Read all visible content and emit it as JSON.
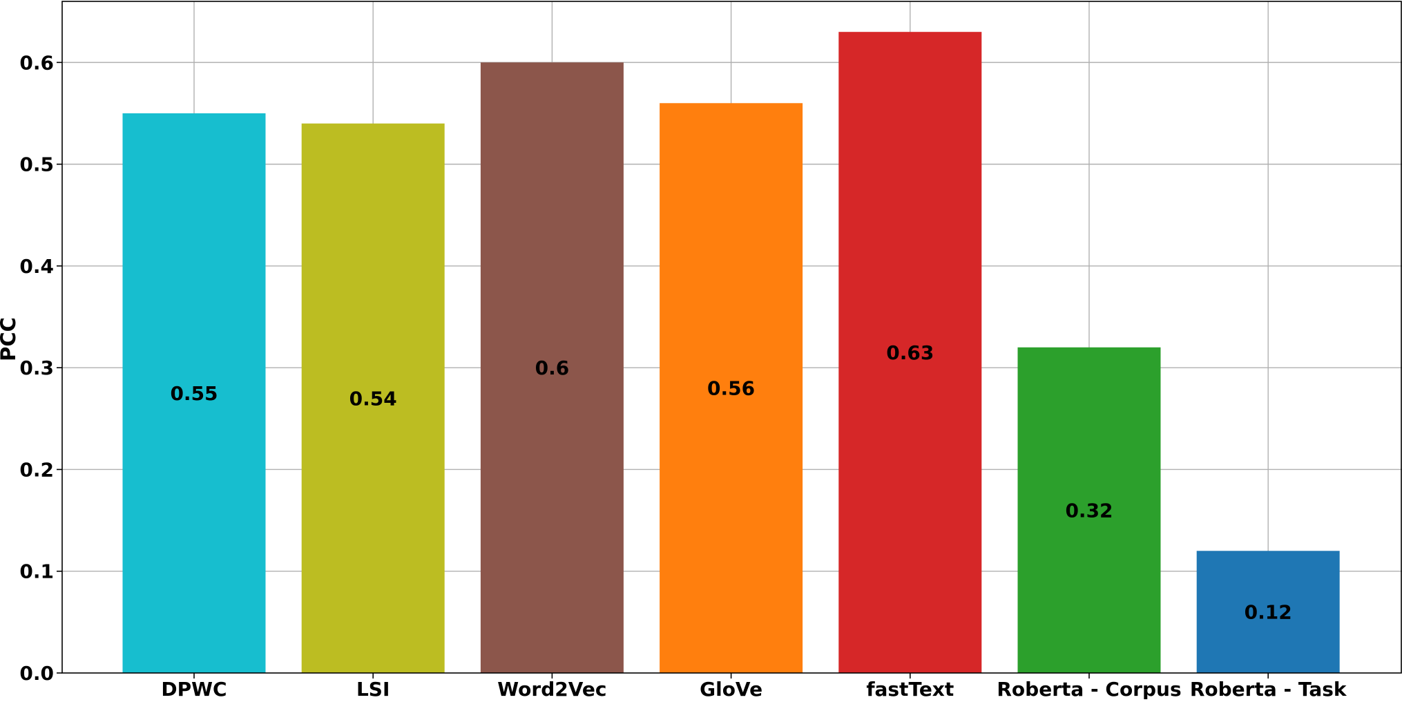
{
  "chart_data": {
    "type": "bar",
    "title": "",
    "xlabel": "",
    "ylabel": "PCC",
    "ylim": [
      0,
      0.66
    ],
    "yticks": [
      "0.0",
      "0.1",
      "0.2",
      "0.3",
      "0.4",
      "0.5",
      "0.6"
    ],
    "grid": true,
    "categories": [
      "DPWC",
      "LSI",
      "Word2Vec",
      "GloVe",
      "fastText",
      "Roberta - Corpus",
      "Roberta - Task"
    ],
    "values": [
      0.55,
      0.54,
      0.6,
      0.56,
      0.63,
      0.32,
      0.12
    ],
    "value_labels": [
      "0.55",
      "0.54",
      "0.6",
      "0.56",
      "0.63",
      "0.32",
      "0.12"
    ],
    "colors": [
      "#17becf",
      "#bcbd22",
      "#8c564b",
      "#ff7f0e",
      "#d62728",
      "#2ca02c",
      "#1f77b4"
    ]
  }
}
